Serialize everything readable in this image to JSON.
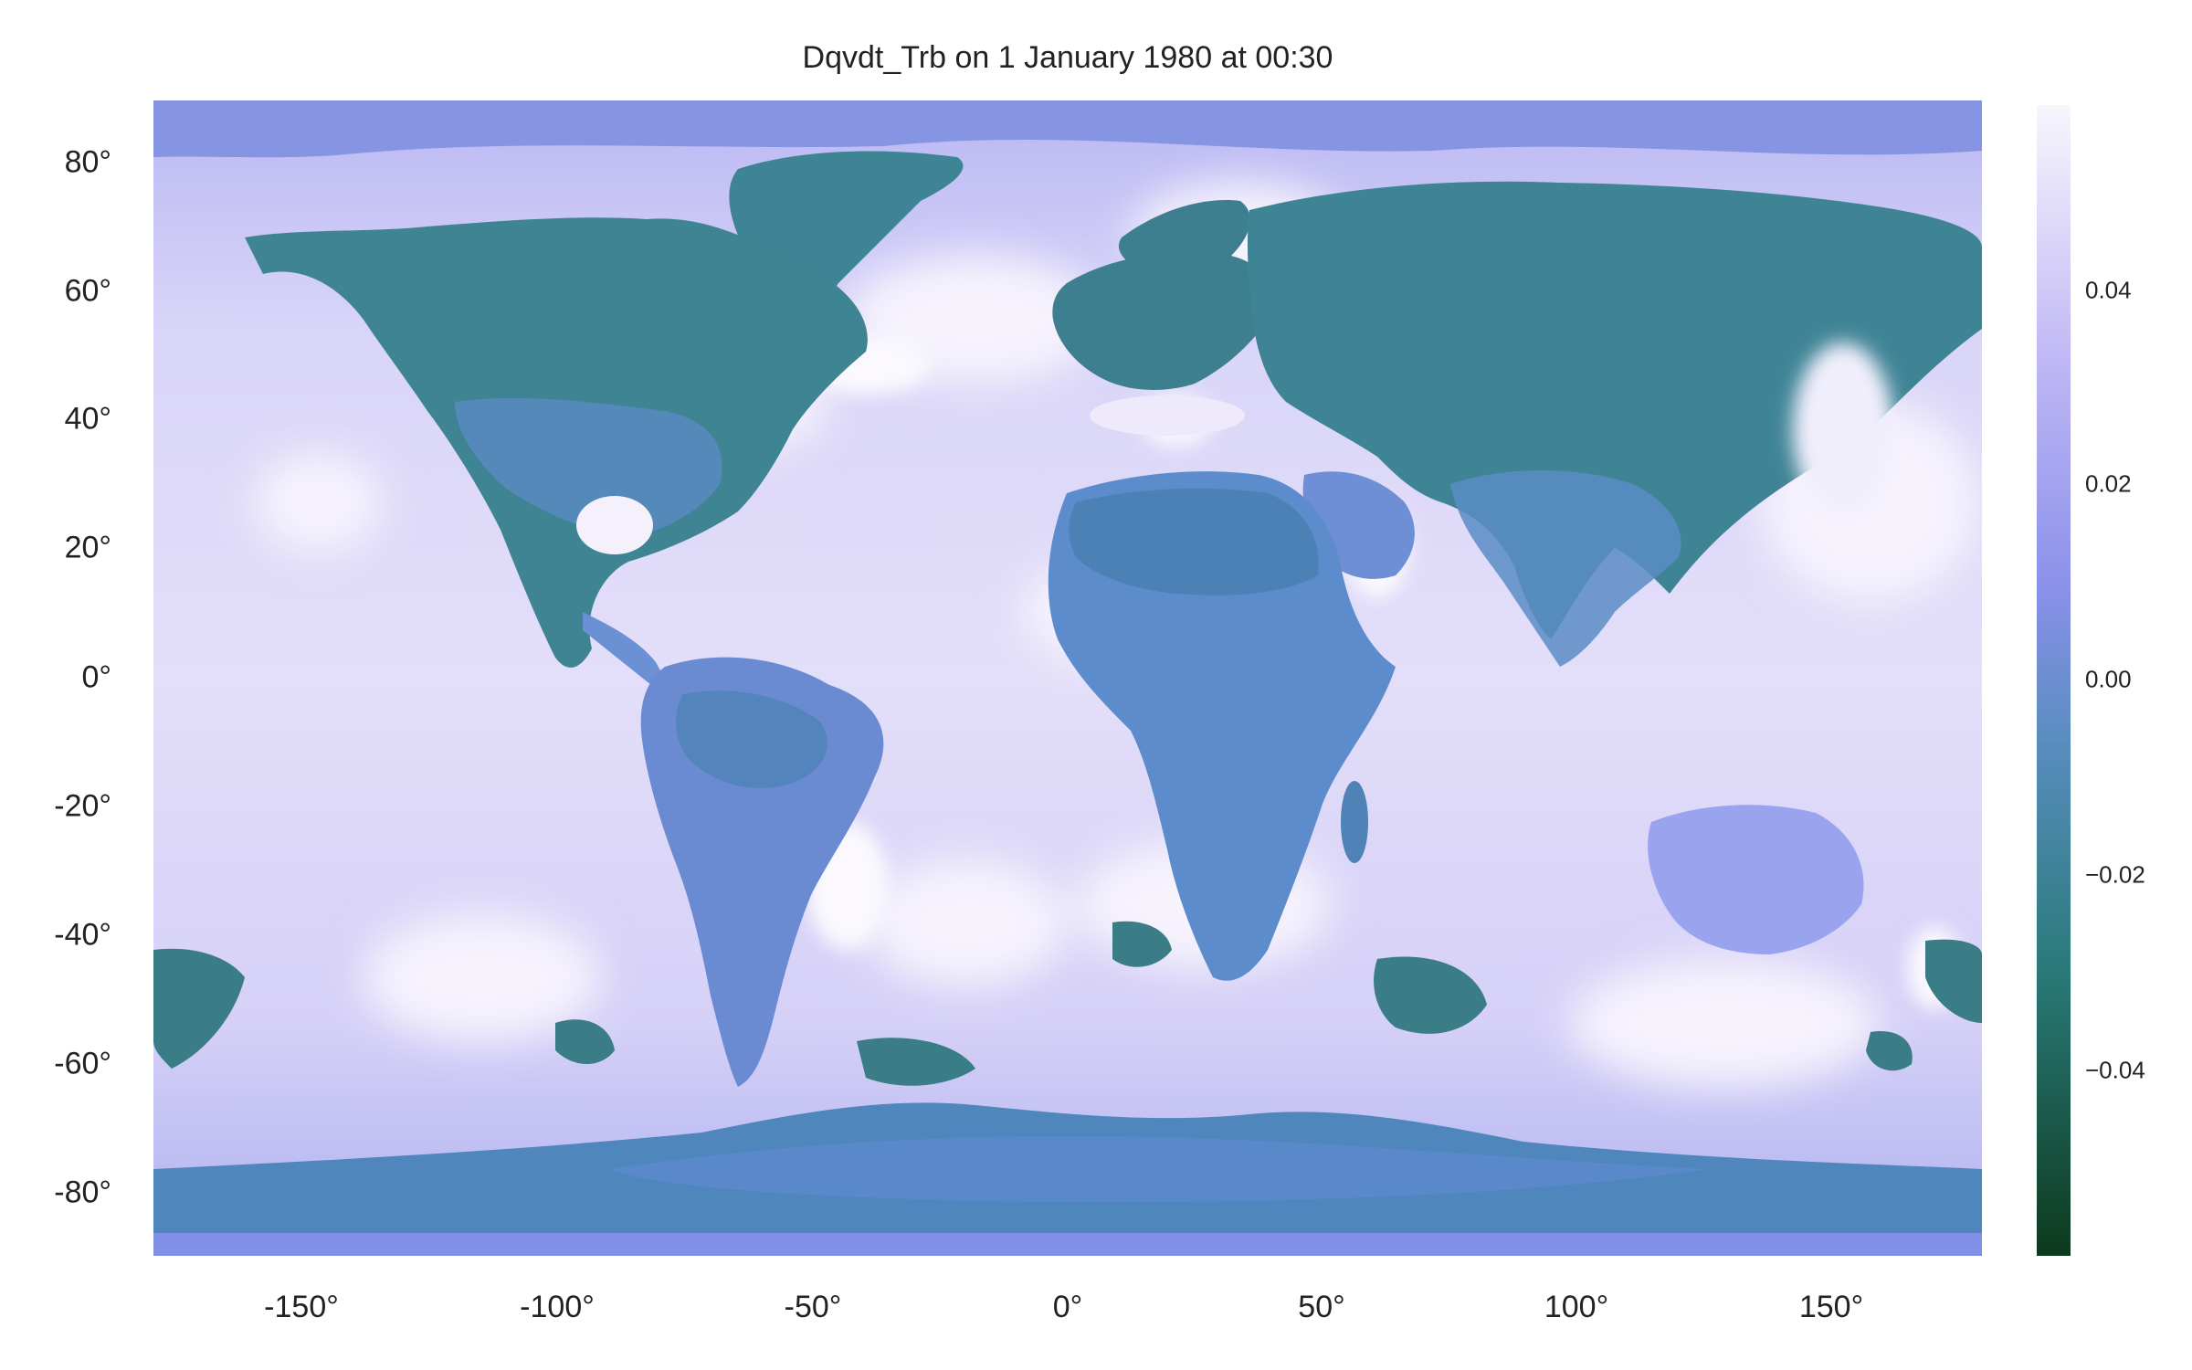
{
  "title": "Dqvdt_Trb on 1 January 1980 at 00:30",
  "axes": {
    "x_ticks": [
      "-150°",
      "-100°",
      "-50°",
      "0°",
      "50°",
      "100°",
      "150°"
    ],
    "x_values": [
      -150,
      -100,
      -50,
      0,
      50,
      100,
      150
    ],
    "y_ticks": [
      "80°",
      "60°",
      "40°",
      "20°",
      "0°",
      "-20°",
      "-40°",
      "-60°",
      "-80°"
    ],
    "y_values": [
      80,
      60,
      40,
      20,
      0,
      -20,
      -40,
      -60,
      -80
    ],
    "lon_range": [
      -180,
      180
    ],
    "lat_range": [
      -90,
      90
    ]
  },
  "colorbar": {
    "ticks": [
      "0.04",
      "0.02",
      "0.00",
      "−0.02",
      "−0.04"
    ],
    "tick_values": [
      0.04,
      0.02,
      0.0,
      -0.02,
      -0.04
    ],
    "range": [
      -0.06,
      0.06
    ],
    "colors": [
      "#0d3a1e",
      "#2a7a7a",
      "#5a8dc0",
      "#8a90ea",
      "#c0b8f5",
      "#f8f6fc"
    ]
  },
  "colors": {
    "land": "#4f87b8",
    "land_dark": "#3c7f8e",
    "ocean": "#d9d5f8",
    "ocean_bright": "#f4f1fc",
    "polar": "#7f90e6"
  }
}
